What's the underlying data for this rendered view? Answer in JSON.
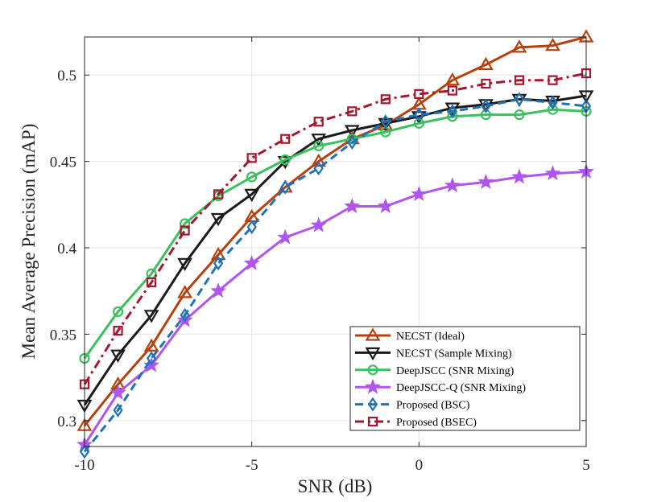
{
  "chart_data": {
    "type": "line",
    "title": "",
    "xlabel": "SNR (dB)",
    "ylabel": "Mean Average Precision (mAP)",
    "xlim": [
      -10,
      5
    ],
    "ylim": [
      0.285,
      0.522
    ],
    "grid": true,
    "legend_position": "bottom-right",
    "xticks": [
      {
        "value": -10,
        "label": "-10"
      },
      {
        "value": -5,
        "label": "-5"
      },
      {
        "value": 0,
        "label": "0"
      },
      {
        "value": 5,
        "label": "5"
      }
    ],
    "yticks": [
      {
        "value": 0.3,
        "label": "0.3"
      },
      {
        "value": 0.35,
        "label": "0.35"
      },
      {
        "value": 0.4,
        "label": "0.4"
      },
      {
        "value": 0.45,
        "label": "0.45"
      },
      {
        "value": 0.5,
        "label": "0.5"
      }
    ],
    "x": [
      -10,
      -9,
      -8,
      -7,
      -6,
      -5,
      -4,
      -3,
      -2,
      -1,
      0,
      1,
      2,
      3,
      4,
      5
    ],
    "series": [
      {
        "name": "NECST (Ideal)",
        "color": "#B5410F",
        "dash": "solid",
        "marker": "triangle-up",
        "values": [
          0.297,
          0.321,
          0.343,
          0.374,
          0.396,
          0.418,
          0.435,
          0.45,
          0.463,
          0.471,
          0.483,
          0.497,
          0.506,
          0.516,
          0.517,
          0.522
        ]
      },
      {
        "name": "NECST (Sample Mixing)",
        "color": "#1A1A1A",
        "dash": "solid",
        "marker": "triangle-down",
        "values": [
          0.309,
          0.338,
          0.361,
          0.391,
          0.417,
          0.431,
          0.45,
          0.463,
          0.468,
          0.472,
          0.476,
          0.481,
          0.483,
          0.486,
          0.485,
          0.488
        ]
      },
      {
        "name": "DeepJSCC (SNR Mixing)",
        "color": "#3CBF5E",
        "dash": "solid",
        "marker": "circle",
        "values": [
          0.336,
          0.363,
          0.385,
          0.414,
          0.43,
          0.441,
          0.451,
          0.459,
          0.463,
          0.467,
          0.472,
          0.476,
          0.477,
          0.477,
          0.48,
          0.479
        ]
      },
      {
        "name": "DeepJSCC-Q (SNR Mixing)",
        "color": "#B055F0",
        "dash": "solid",
        "marker": "star",
        "values": [
          0.286,
          0.316,
          0.332,
          0.358,
          0.375,
          0.391,
          0.406,
          0.413,
          0.424,
          0.424,
          0.431,
          0.436,
          0.438,
          0.441,
          0.443,
          0.444
        ]
      },
      {
        "name": "Proposed (BSC)",
        "color": "#1F72B8",
        "dash": "dashed",
        "marker": "diamond",
        "values": [
          0.282,
          0.306,
          0.336,
          0.361,
          0.391,
          0.412,
          0.435,
          0.446,
          0.461,
          0.473,
          0.477,
          0.479,
          0.482,
          0.486,
          0.484,
          0.482
        ]
      },
      {
        "name": "Proposed (BSEC)",
        "color": "#A3182F",
        "dash": "dashdot",
        "marker": "square",
        "values": [
          0.321,
          0.352,
          0.38,
          0.41,
          0.431,
          0.452,
          0.463,
          0.473,
          0.479,
          0.486,
          0.489,
          0.491,
          0.495,
          0.497,
          0.497,
          0.501
        ]
      }
    ]
  }
}
